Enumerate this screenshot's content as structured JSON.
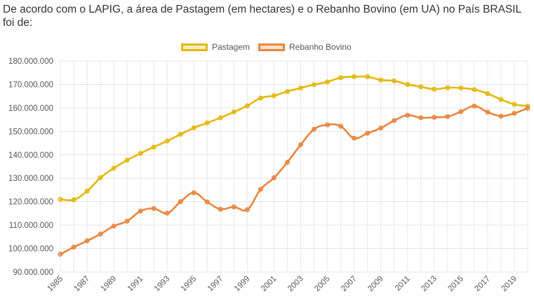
{
  "title": "De acordo com o LAPIG, a área de Pastagem (em hectares) e o Rebanho Bovino (em UA) no País BRASIL foi de:",
  "chart_data": {
    "type": "line",
    "title": "",
    "xlabel": "",
    "ylabel": "",
    "x": [
      1985,
      1986,
      1987,
      1988,
      1989,
      1990,
      1991,
      1992,
      1993,
      1994,
      1995,
      1996,
      1997,
      1998,
      1999,
      2000,
      2001,
      2002,
      2003,
      2004,
      2005,
      2006,
      2007,
      2008,
      2009,
      2010,
      2011,
      2012,
      2013,
      2014,
      2015,
      2016,
      2017,
      2018,
      2019,
      2020
    ],
    "x_tick_labels": [
      "1985",
      "1987",
      "1989",
      "1991",
      "1993",
      "1995",
      "1997",
      "1999",
      "2001",
      "2003",
      "2005",
      "2007",
      "2009",
      "2011",
      "2013",
      "2015",
      "2017",
      "2019"
    ],
    "y_tick_labels": [
      "90.000.000",
      "100.000.000",
      "110.000.000",
      "120.000.000",
      "130.000.000",
      "140.000.000",
      "150.000.000",
      "160.000.000",
      "170.000.000",
      "180.000.000"
    ],
    "ylim": [
      90000000,
      180000000
    ],
    "grid": true,
    "legend_position": "top",
    "series": [
      {
        "name": "Pastagem",
        "color": "#e3b80d",
        "values": [
          121000000,
          120800000,
          124500000,
          130200000,
          134300000,
          137700000,
          140600000,
          143300000,
          145900000,
          148700000,
          151500000,
          153600000,
          155800000,
          158300000,
          160900000,
          164200000,
          165200000,
          167000000,
          168500000,
          169900000,
          171100000,
          172900000,
          173300000,
          173300000,
          171900000,
          171500000,
          170000000,
          169000000,
          168000000,
          168600000,
          168500000,
          167800000,
          166100000,
          163600000,
          161500000,
          160800000
        ]
      },
      {
        "name": "Rebanho Bovino",
        "color": "#e8853f",
        "values": [
          97600000,
          100600000,
          103300000,
          106200000,
          109600000,
          111700000,
          116000000,
          117100000,
          115100000,
          120000000,
          123800000,
          119900000,
          116800000,
          117800000,
          116600000,
          125300000,
          130200000,
          136800000,
          144300000,
          150900000,
          152800000,
          152200000,
          147100000,
          149200000,
          151400000,
          154600000,
          156900000,
          155800000,
          156000000,
          156300000,
          158400000,
          160800000,
          158200000,
          156500000,
          157700000,
          159900000
        ]
      }
    ]
  }
}
